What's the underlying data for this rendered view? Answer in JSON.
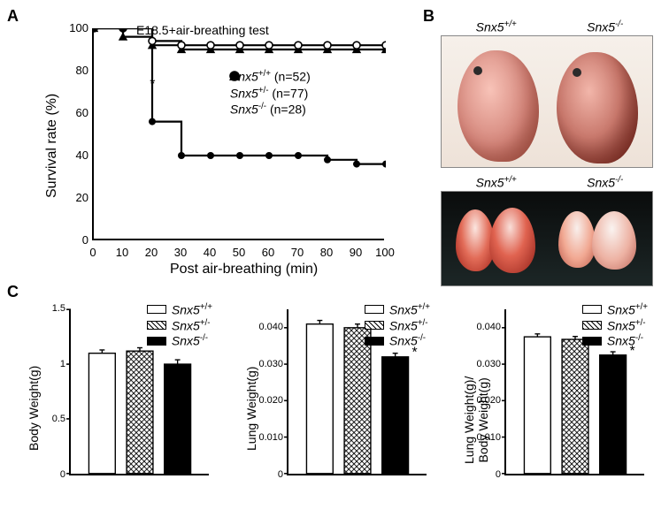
{
  "panel_labels": {
    "A": "A",
    "B": "B",
    "C": "C"
  },
  "genotypes": {
    "wt": "Snx5",
    "wt_sup": "+/+",
    "het": "Snx5",
    "het_sup": "+/-",
    "ko": "Snx5",
    "ko_sup": "-/-"
  },
  "panelA": {
    "title": "E18.5+air-breathing test",
    "xlabel": "Post air-breathing (min)",
    "ylabel": "Survival rate (%)",
    "xlim": [
      0,
      100
    ],
    "xtick_step": 10,
    "ylim": [
      0,
      100
    ],
    "ytick_step": 20,
    "star_x": 21,
    "star_y": 72,
    "star": "*",
    "legend": [
      {
        "key": "wt",
        "marker": "open-circle",
        "n": 52
      },
      {
        "key": "het",
        "marker": "filled-triangle",
        "n": 77
      },
      {
        "key": "ko",
        "marker": "filled-circle",
        "n": 28
      }
    ],
    "series": {
      "wt": [
        [
          0,
          100
        ],
        [
          10,
          100
        ],
        [
          20,
          94
        ],
        [
          30,
          92
        ],
        [
          40,
          92
        ],
        [
          50,
          92
        ],
        [
          60,
          92
        ],
        [
          70,
          92
        ],
        [
          80,
          92
        ],
        [
          90,
          92
        ],
        [
          100,
          92
        ]
      ],
      "het": [
        [
          0,
          100
        ],
        [
          10,
          96
        ],
        [
          20,
          92
        ],
        [
          30,
          90
        ],
        [
          40,
          90
        ],
        [
          50,
          90
        ],
        [
          60,
          90
        ],
        [
          70,
          90
        ],
        [
          80,
          90
        ],
        [
          90,
          90
        ],
        [
          100,
          90
        ]
      ],
      "ko": [
        [
          0,
          100
        ],
        [
          10,
          100
        ],
        [
          20,
          56
        ],
        [
          30,
          40
        ],
        [
          40,
          40
        ],
        [
          50,
          40
        ],
        [
          60,
          40
        ],
        [
          70,
          40
        ],
        [
          80,
          38
        ],
        [
          90,
          36
        ],
        [
          100,
          36
        ]
      ]
    },
    "line_width": 2.2,
    "marker_size": 8,
    "colors": {
      "line": "#000000",
      "bg": "#ffffff"
    }
  },
  "panelB": {
    "top_labels": [
      "wt",
      "ko"
    ],
    "bottom_labels": [
      "wt",
      "ko"
    ]
  },
  "panelC": {
    "charts": [
      {
        "ylabel": "Body Weight(g)",
        "ymax": 1.5,
        "ymin": 0.0,
        "ytick_step": 0.5,
        "decimals": 1,
        "bars": [
          {
            "group": "wt",
            "value": 1.1,
            "err": 0.03
          },
          {
            "group": "het",
            "value": 1.12,
            "err": 0.03
          },
          {
            "group": "ko",
            "value": 1.0,
            "err": 0.04
          }
        ],
        "sig": []
      },
      {
        "ylabel": "Lung Weight(g)",
        "ymax": 0.045,
        "ymin": 0.0,
        "ytick_step": 0.01,
        "decimals": 3,
        "tick_labels": [
          "0",
          "0.010",
          "0.020",
          "0.030",
          "0.040"
        ],
        "bars": [
          {
            "group": "wt",
            "value": 0.041,
            "err": 0.001
          },
          {
            "group": "het",
            "value": 0.04,
            "err": 0.001
          },
          {
            "group": "ko",
            "value": 0.032,
            "err": 0.001
          }
        ],
        "sig": [
          {
            "bar": 2,
            "label": "*"
          }
        ]
      },
      {
        "ylabel": "Lung Weight(g)/\nBody Weight(g)",
        "ymax": 0.045,
        "ymin": 0.0,
        "ytick_step": 0.01,
        "decimals": 3,
        "tick_labels": [
          "0",
          "0.010",
          "0.020",
          "0.030",
          "0.040"
        ],
        "bars": [
          {
            "group": "wt",
            "value": 0.0375,
            "err": 0.0008
          },
          {
            "group": "het",
            "value": 0.0368,
            "err": 0.0008
          },
          {
            "group": "ko",
            "value": 0.0325,
            "err": 0.0009
          }
        ],
        "sig": [
          {
            "bar": 2,
            "label": "*"
          }
        ]
      }
    ],
    "fills": {
      "wt": "#ffffff",
      "het": "pattern-cross",
      "ko": "#000000"
    },
    "bar_width": 0.7,
    "err_cap": 6,
    "colors": {
      "stroke": "#000000"
    }
  }
}
